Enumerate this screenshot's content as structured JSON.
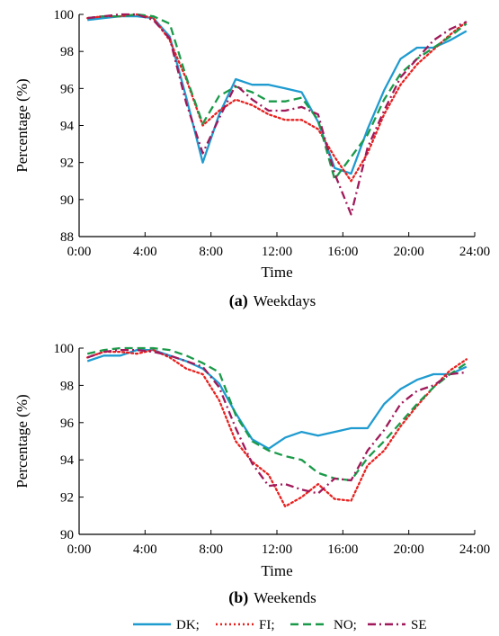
{
  "colors": {
    "DK": "#1f9bd0",
    "FI": "#e8211f",
    "NO": "#1a9a49",
    "SE": "#a0195a"
  },
  "legend": {
    "items": [
      {
        "key": "DK",
        "label": "DK;"
      },
      {
        "key": "FI",
        "label": "FI;"
      },
      {
        "key": "NO",
        "label": "NO;"
      },
      {
        "key": "SE",
        "label": "SE"
      }
    ]
  },
  "chart_data": [
    {
      "type": "line",
      "caption_letter": "(a)",
      "caption_text": "Weekdays",
      "xlabel": "Time",
      "ylabel": "Percentage (%)",
      "xlim": [
        0,
        24
      ],
      "ylim": [
        88,
        100
      ],
      "xticks": [
        "0:00",
        "4:00",
        "8:00",
        "12:00",
        "16:00",
        "20:00",
        "24:00"
      ],
      "yticks": [
        "88",
        "90",
        "92",
        "94",
        "96",
        "98",
        "100"
      ],
      "grid": false,
      "x": [
        0.5,
        1.5,
        2.5,
        3.5,
        4.5,
        5.5,
        6.5,
        7.5,
        8.5,
        9.5,
        10.5,
        11.5,
        12.5,
        13.5,
        14.5,
        15.5,
        16.5,
        17.5,
        18.5,
        19.5,
        20.5,
        21.5,
        22.5,
        23.5
      ],
      "series": [
        {
          "name": "DK",
          "style": "solid",
          "values": [
            99.7,
            99.8,
            99.9,
            99.9,
            99.8,
            98.8,
            95.5,
            92.0,
            94.6,
            96.5,
            96.2,
            96.2,
            96.0,
            95.8,
            94.2,
            91.7,
            91.4,
            93.8,
            95.9,
            97.6,
            98.2,
            98.2,
            98.6,
            99.1
          ]
        },
        {
          "name": "FI",
          "style": "dotted",
          "values": [
            99.8,
            99.9,
            99.9,
            100.0,
            99.8,
            98.6,
            96.5,
            94.0,
            94.8,
            95.4,
            95.1,
            94.6,
            94.3,
            94.3,
            93.8,
            92.3,
            91.0,
            92.5,
            94.6,
            96.2,
            97.3,
            98.1,
            98.9,
            99.6
          ]
        },
        {
          "name": "NO",
          "style": "dashed",
          "values": [
            99.8,
            99.9,
            99.9,
            100.0,
            99.9,
            99.5,
            96.6,
            94.1,
            95.6,
            96.1,
            95.8,
            95.3,
            95.3,
            95.5,
            94.3,
            91.1,
            92.3,
            93.5,
            95.4,
            96.8,
            97.6,
            98.2,
            98.8,
            99.5
          ]
        },
        {
          "name": "SE",
          "style": "dashdot",
          "values": [
            99.8,
            99.9,
            100.0,
            100.0,
            99.7,
            98.7,
            95.2,
            92.5,
            94.4,
            96.2,
            95.4,
            94.8,
            94.8,
            95.0,
            94.6,
            91.4,
            89.2,
            92.8,
            94.8,
            96.6,
            97.6,
            98.6,
            99.2,
            99.6
          ]
        }
      ]
    },
    {
      "type": "line",
      "caption_letter": "(b)",
      "caption_text": "Weekends",
      "xlabel": "Time",
      "ylabel": "Percentage (%)",
      "xlim": [
        0,
        24
      ],
      "ylim": [
        90,
        100
      ],
      "xticks": [
        "0:00",
        "4:00",
        "8:00",
        "12:00",
        "16:00",
        "20:00",
        "24:00"
      ],
      "yticks": [
        "90",
        "92",
        "94",
        "96",
        "98",
        "100"
      ],
      "grid": false,
      "x": [
        0.5,
        1.5,
        2.5,
        3.5,
        4.5,
        5.5,
        6.5,
        7.5,
        8.5,
        9.5,
        10.5,
        11.5,
        12.5,
        13.5,
        14.5,
        15.5,
        16.5,
        17.5,
        18.5,
        19.5,
        20.5,
        21.5,
        22.5,
        23.5
      ],
      "series": [
        {
          "name": "DK",
          "style": "solid",
          "values": [
            99.3,
            99.6,
            99.6,
            99.9,
            99.9,
            99.6,
            99.3,
            98.9,
            98.1,
            96.5,
            95.1,
            94.6,
            95.2,
            95.5,
            95.3,
            95.5,
            95.7,
            95.7,
            97.0,
            97.8,
            98.3,
            98.6,
            98.6,
            99.0
          ]
        },
        {
          "name": "FI",
          "style": "dotted",
          "values": [
            99.5,
            99.8,
            99.8,
            99.7,
            99.9,
            99.5,
            98.9,
            98.6,
            97.2,
            95.0,
            93.9,
            93.2,
            91.5,
            92.0,
            92.7,
            91.9,
            91.8,
            93.7,
            94.5,
            95.8,
            96.9,
            97.9,
            98.8,
            99.4
          ]
        },
        {
          "name": "NO",
          "style": "dashed",
          "values": [
            99.7,
            99.9,
            100.0,
            100.0,
            100.0,
            99.9,
            99.6,
            99.2,
            98.7,
            96.4,
            95.0,
            94.5,
            94.2,
            94.0,
            93.3,
            93.0,
            92.9,
            94.1,
            95.0,
            96.0,
            97.0,
            97.9,
            98.6,
            99.2
          ]
        },
        {
          "name": "SE",
          "style": "dashdot",
          "values": [
            99.5,
            99.8,
            99.9,
            99.9,
            99.8,
            99.6,
            99.3,
            99.0,
            97.9,
            95.7,
            93.8,
            92.6,
            92.7,
            92.4,
            92.2,
            93.0,
            92.9,
            94.5,
            95.6,
            97.0,
            97.7,
            98.0,
            98.6,
            98.7
          ]
        }
      ]
    }
  ]
}
